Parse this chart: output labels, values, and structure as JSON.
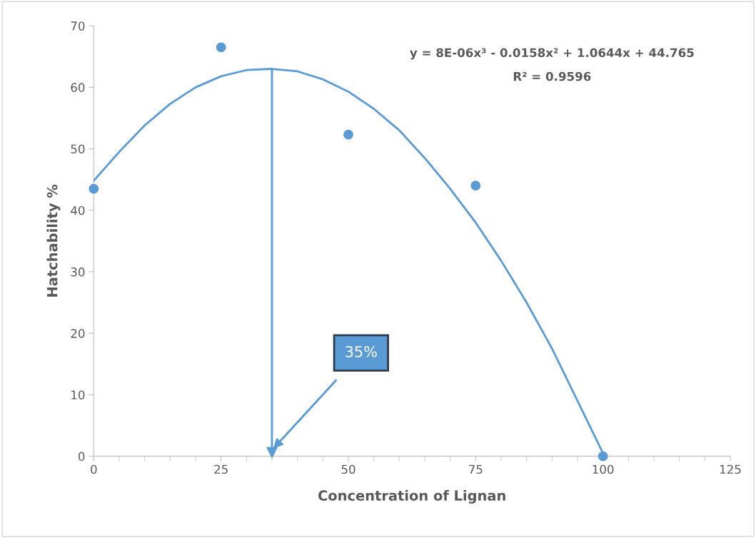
{
  "chart_data": {
    "type": "scatter",
    "xlabel": "Concentration of Lignan",
    "ylabel": "Hatchability %",
    "series": [
      {
        "color": "#5b9bd5",
        "marker": "circle",
        "x": [
          0,
          25,
          50,
          75,
          100
        ],
        "values": [
          43.5,
          66.5,
          52.3,
          44,
          0
        ]
      },
      {
        "type": "line",
        "marker": "none",
        "color": "#5b9bd5",
        "x": [
          0,
          5,
          10,
          15,
          20,
          25,
          30,
          35,
          40,
          45,
          50,
          55,
          60,
          65,
          70,
          75,
          80,
          85,
          90,
          95,
          100
        ],
        "values": [
          44.8,
          49.5,
          53.8,
          57.3,
          60,
          61.8,
          62.8,
          63,
          62.6,
          61.3,
          59.3,
          56.5,
          53,
          48.5,
          43.5,
          38,
          31.8,
          25,
          17.5,
          9,
          0.5
        ]
      }
    ],
    "xlim": [
      0,
      125
    ],
    "xticks": [
      0,
      25,
      50,
      75,
      100,
      125
    ],
    "ylim": [
      0,
      70
    ],
    "yticks": [
      0,
      10,
      20,
      30,
      40,
      50,
      60,
      70
    ],
    "grid": false,
    "ref_lines": [
      {
        "axis": "x",
        "value": 35,
        "color": "#5b9bd5"
      }
    ],
    "annotations": [
      "y = 8E-06x³ - 0.0158x² + 1.0644x + 44.765",
      "R² = 0.9596",
      "35%"
    ]
  }
}
